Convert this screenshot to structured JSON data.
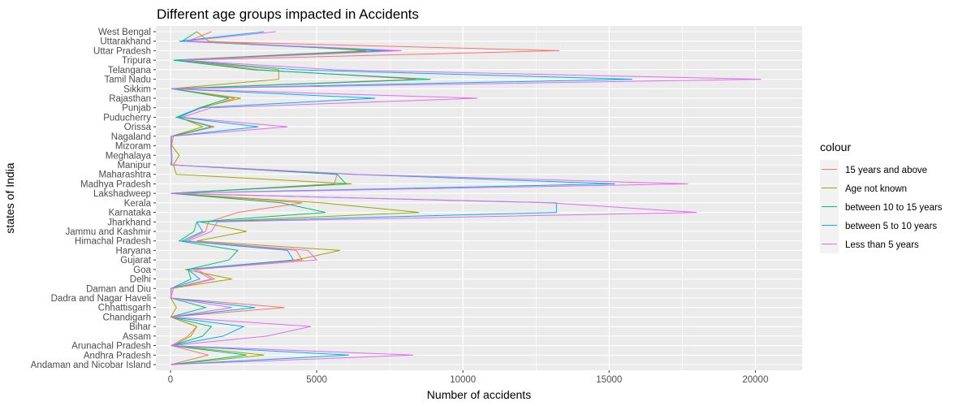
{
  "chart_data": {
    "type": "line",
    "title": "Different age groups impacted in Accidents",
    "xlabel": "Number of accidents",
    "ylabel": "states of India",
    "xlim": [
      -500,
      21600
    ],
    "x_ticks": [
      0,
      5000,
      10000,
      15000,
      20000
    ],
    "x_tick_labels": [
      "0",
      "5000",
      "10000",
      "15000",
      "20000"
    ],
    "grid": true,
    "legend": {
      "title": "colour",
      "position": "right"
    },
    "categories": [
      "Andaman and Nicobar Island",
      "Andhra Pradesh",
      "Arunachal Pradesh",
      "Assam",
      "Bihar",
      "Chandigarh",
      "Chhattisgarh",
      "Dadra and Nagar Haveli",
      "Daman and Diu",
      "Delhi",
      "Goa",
      "Gujarat",
      "Haryana",
      "Himachal Pradesh",
      "Jammu and Kashmir",
      "Jharkhand",
      "Karnataka",
      "Kerala",
      "Lakshadweep",
      "Madhya Pradesh",
      "Maharashtra",
      "Manipur",
      "Meghalaya",
      "Mizoram",
      "Nagaland",
      "Orissa",
      "Puducherry",
      "Punjab",
      "Rajasthan",
      "Sikkim",
      "Tamil Nadu",
      "Telangana",
      "Tripura",
      "Uttar Pradesh",
      "Uttarakhand",
      "West Bengal"
    ],
    "series": [
      {
        "name": "15 years and above",
        "color": "#F8766D",
        "values": [
          10,
          1300,
          30,
          600,
          900,
          10,
          3900,
          10,
          100,
          1500,
          900,
          4500,
          4300,
          500,
          1200,
          1300,
          2300,
          4500,
          10,
          5600,
          5700,
          10,
          50,
          30,
          100,
          1500,
          200,
          1100,
          2200,
          50,
          8400,
          3000,
          400,
          13300,
          600,
          1400
        ]
      },
      {
        "name": "Age not known",
        "color": "#A3A500",
        "values": [
          20,
          3200,
          100,
          700,
          900,
          10,
          200,
          10,
          20,
          2100,
          500,
          4300,
          5800,
          900,
          2600,
          1000,
          8500,
          5200,
          10,
          6200,
          200,
          100,
          300,
          50,
          30,
          1100,
          300,
          1000,
          2400,
          40,
          3700,
          3700,
          100,
          6700,
          1300,
          900
        ]
      },
      {
        "name": "between 10 to 15 years",
        "color": "#00BF7D",
        "values": [
          10,
          2600,
          40,
          1100,
          1400,
          10,
          1200,
          10,
          20,
          700,
          600,
          2000,
          2300,
          300,
          800,
          900,
          5300,
          3800,
          10,
          6000,
          5700,
          30,
          30,
          10,
          30,
          1400,
          200,
          1000,
          2000,
          40,
          8900,
          2800,
          100,
          7200,
          400,
          900
        ]
      },
      {
        "name": "between 5 to 10 years",
        "color": "#00B0F6",
        "values": [
          10,
          6100,
          40,
          1800,
          2500,
          10,
          2900,
          10,
          20,
          1000,
          600,
          4200,
          4000,
          400,
          1100,
          900,
          13200,
          13200,
          10,
          15200,
          6200,
          40,
          40,
          10,
          20,
          3000,
          300,
          1000,
          7000,
          30,
          15800,
          4300,
          300,
          7600,
          300,
          3200
        ]
      },
      {
        "name": "Less than 5 years",
        "color": "#E76BF3",
        "values": [
          10,
          8300,
          50,
          3300,
          4800,
          10,
          2100,
          10,
          30,
          1400,
          800,
          5000,
          4700,
          600,
          1400,
          1600,
          18000,
          13000,
          10,
          17700,
          6400,
          50,
          50,
          20,
          40,
          4000,
          400,
          1400,
          10500,
          40,
          20200,
          5600,
          400,
          7900,
          500,
          3600
        ]
      }
    ]
  }
}
